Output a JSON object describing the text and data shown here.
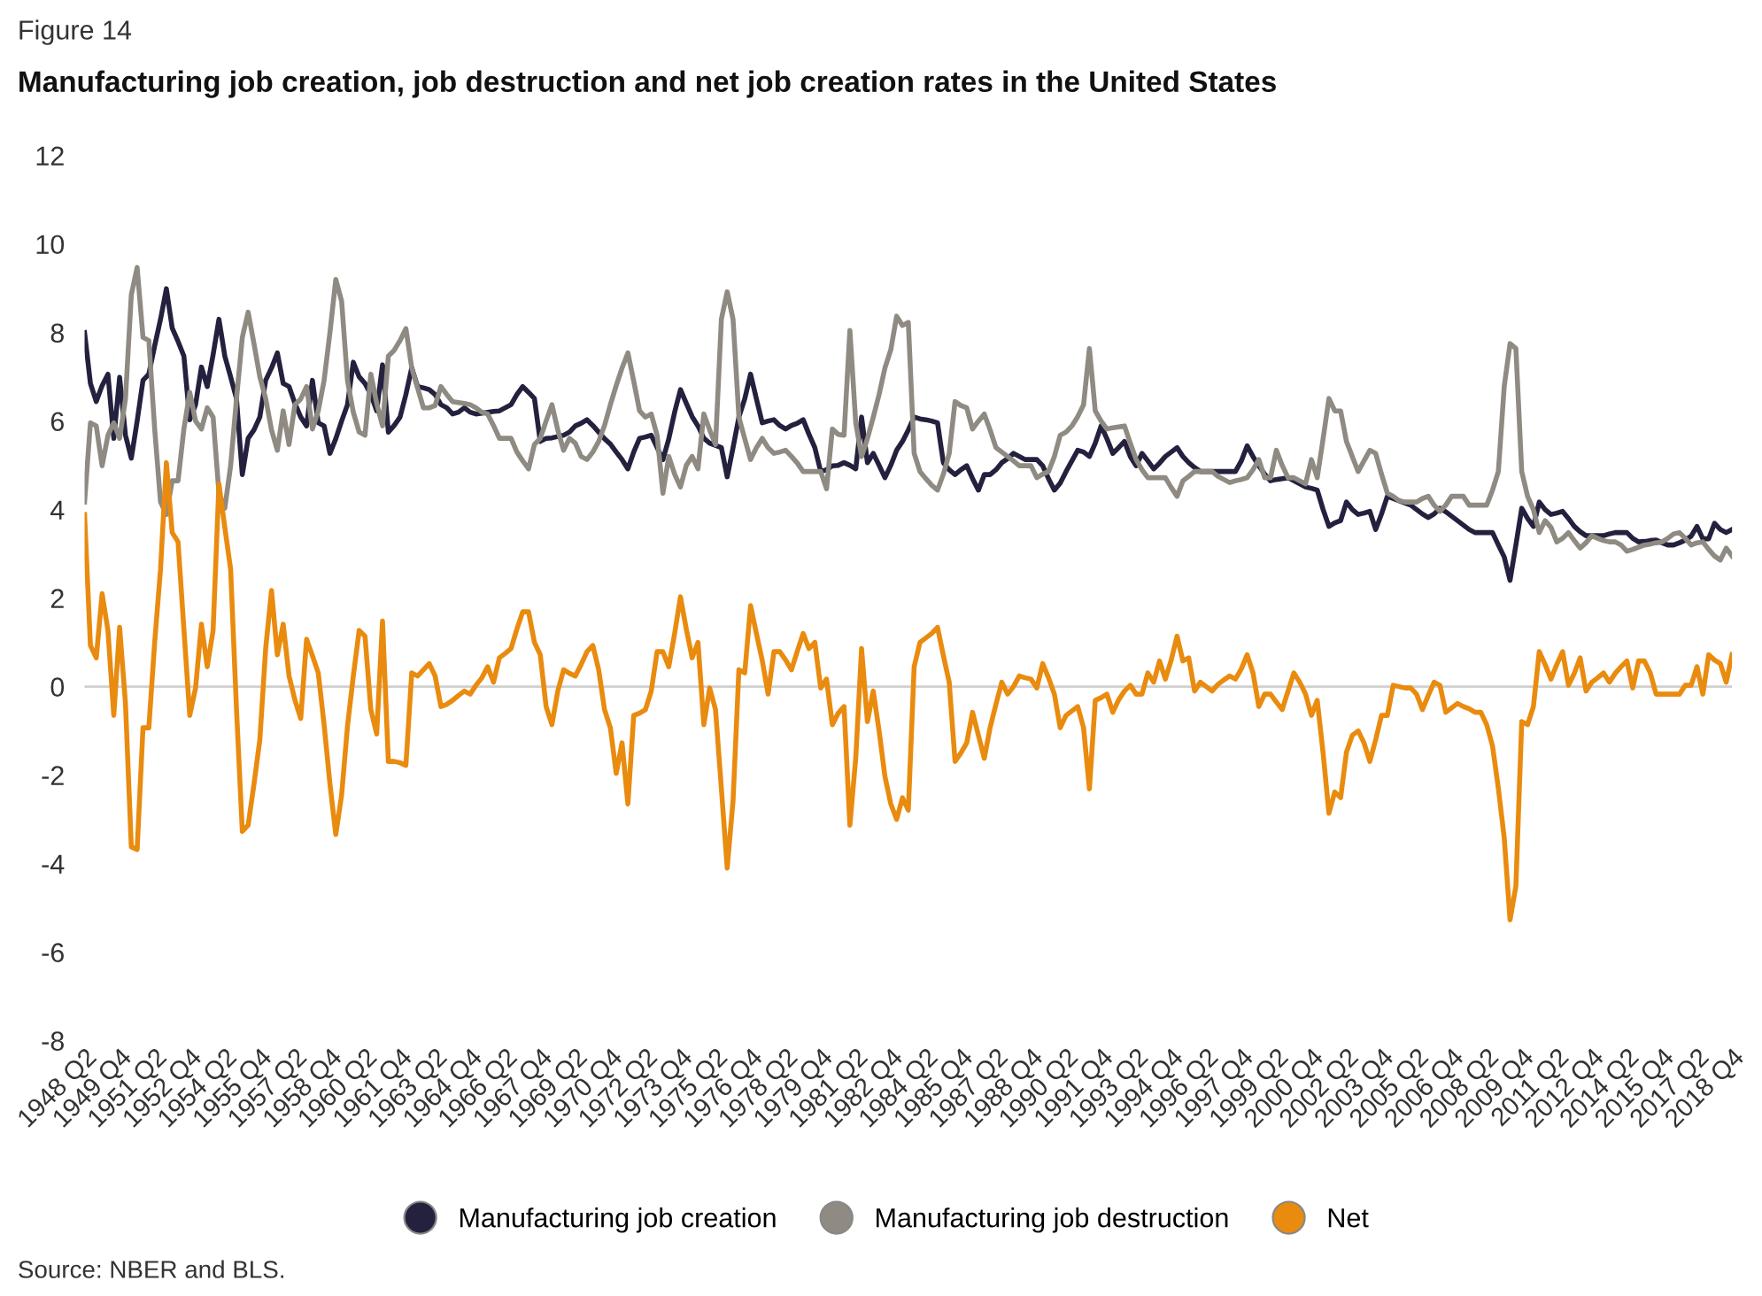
{
  "chart_data": {
    "type": "line",
    "title": "Manufacturing job creation, job destruction and net job creation rates in the United States",
    "annotations": [
      "Figure 14",
      "Source: NBER and BLS."
    ],
    "ylim": [
      -8,
      12
    ],
    "yticks": [
      -8,
      -6,
      -4,
      -2,
      0,
      2,
      4,
      6,
      8,
      10,
      12
    ],
    "categories": [
      "1948 Q2",
      null,
      null,
      null,
      null,
      null,
      "1949 Q4",
      null,
      null,
      null,
      null,
      null,
      "1951 Q2",
      null,
      null,
      null,
      null,
      null,
      "1952 Q4",
      null,
      null,
      null,
      null,
      null,
      "1954 Q2",
      null,
      null,
      null,
      null,
      null,
      "1955 Q4",
      null,
      null,
      null,
      null,
      null,
      "1957 Q2",
      null,
      null,
      null,
      null,
      null,
      "1958 Q4",
      null,
      null,
      null,
      null,
      null,
      "1960 Q2",
      null,
      null,
      null,
      null,
      null,
      "1961 Q4",
      null,
      null,
      null,
      null,
      null,
      "1963 Q2",
      null,
      null,
      null,
      null,
      null,
      "1964 Q4",
      null,
      null,
      null,
      null,
      null,
      "1966 Q2",
      null,
      null,
      null,
      null,
      null,
      "1967 Q4",
      null,
      null,
      null,
      null,
      null,
      "1969 Q2",
      null,
      null,
      null,
      null,
      null,
      "1970 Q4",
      null,
      null,
      null,
      null,
      null,
      "1972 Q2",
      null,
      null,
      null,
      null,
      null,
      "1973 Q4",
      null,
      null,
      null,
      null,
      null,
      "1975 Q2",
      null,
      null,
      null,
      null,
      null,
      "1976 Q4",
      null,
      null,
      null,
      null,
      null,
      "1978 Q2",
      null,
      null,
      null,
      null,
      null,
      "1979 Q4",
      null,
      null,
      null,
      null,
      null,
      "1981 Q2",
      null,
      null,
      null,
      null,
      null,
      "1982 Q4",
      null,
      null,
      null,
      null,
      null,
      "1984 Q2",
      null,
      null,
      null,
      null,
      null,
      "1985 Q4",
      null,
      null,
      null,
      null,
      null,
      "1987 Q2",
      null,
      null,
      null,
      null,
      null,
      "1988 Q4",
      null,
      null,
      null,
      null,
      null,
      "1990 Q2",
      null,
      null,
      null,
      null,
      null,
      "1991 Q4",
      null,
      null,
      null,
      null,
      null,
      "1993 Q2",
      null,
      null,
      null,
      null,
      null,
      "1994 Q4",
      null,
      null,
      null,
      null,
      null,
      "1996 Q2",
      null,
      null,
      null,
      null,
      null,
      "1997 Q4",
      null,
      null,
      null,
      null,
      null,
      "1999 Q2",
      null,
      null,
      null,
      null,
      null,
      "2000 Q4",
      null,
      null,
      null,
      null,
      null,
      "2002 Q2",
      null,
      null,
      null,
      null,
      null,
      "2003 Q4",
      null,
      null,
      null,
      null,
      null,
      "2005 Q2",
      null,
      null,
      null,
      null,
      null,
      "2006 Q4",
      null,
      null,
      null,
      null,
      null,
      "2008 Q2",
      null,
      null,
      null,
      null,
      null,
      "2009 Q4",
      null,
      null,
      null,
      null,
      null,
      "2011 Q2",
      null,
      null,
      null,
      null,
      null,
      "2012 Q4",
      null,
      null,
      null,
      null,
      null,
      "2014 Q2",
      null,
      null,
      null,
      null,
      null,
      "2015 Q4",
      null,
      null,
      null,
      null,
      null,
      "2017 Q2",
      null,
      null,
      null,
      null,
      null,
      "2018 Q4"
    ],
    "grid": false,
    "legend": "bottom",
    "marker": "none",
    "line_style": "solid",
    "ref_lines": [
      {
        "axis": "y",
        "value": 0,
        "color": "#d0d0d0"
      }
    ],
    "series": [
      {
        "name": "Manufacturing job creation",
        "color": "#24213f",
        "values": [
          8.0,
          6.85,
          6.44,
          6.8,
          7.06,
          5.61,
          6.99,
          5.68,
          5.16,
          6.0,
          6.92,
          7.06,
          7.7,
          8.3,
          8.99,
          8.1,
          7.8,
          7.47,
          6.03,
          6.37,
          7.22,
          6.78,
          7.5,
          8.3,
          7.47,
          7.0,
          6.51,
          4.79,
          5.61,
          5.8,
          6.09,
          6.92,
          7.2,
          7.54,
          6.85,
          6.78,
          6.4,
          6.09,
          5.89,
          6.92,
          5.96,
          5.89,
          5.27,
          5.6,
          6.0,
          6.37,
          7.33,
          7.0,
          6.85,
          6.6,
          6.23,
          7.27,
          5.75,
          5.9,
          6.09,
          6.6,
          7.2,
          6.78,
          6.75,
          6.71,
          6.6,
          6.37,
          6.3,
          6.16,
          6.2,
          6.3,
          6.2,
          6.16,
          6.18,
          6.2,
          6.22,
          6.23,
          6.3,
          6.37,
          6.6,
          6.78,
          6.65,
          6.51,
          5.54,
          5.61,
          5.62,
          5.65,
          5.68,
          5.75,
          5.89,
          5.95,
          6.03,
          5.9,
          5.75,
          5.6,
          5.48,
          5.3,
          5.13,
          4.92,
          5.3,
          5.61,
          5.64,
          5.68,
          5.4,
          5.13,
          5.6,
          6.2,
          6.71,
          6.4,
          6.1,
          5.89,
          5.61,
          5.5,
          5.45,
          5.4,
          4.74,
          5.4,
          6.09,
          6.5,
          7.06,
          6.5,
          5.96,
          6.0,
          6.03,
          5.9,
          5.82,
          5.9,
          5.95,
          6.03,
          5.7,
          5.4,
          4.86,
          4.9,
          4.99,
          5.0,
          5.06,
          5.0,
          4.92,
          6.09,
          5.06,
          5.27,
          5.0,
          4.72,
          5.0,
          5.34,
          5.54,
          5.8,
          6.09,
          6.05,
          6.03,
          6.0,
          5.96,
          5.06,
          4.9,
          4.79,
          4.9,
          4.99,
          4.7,
          4.44,
          4.79,
          4.79,
          4.9,
          5.06,
          5.15,
          5.27,
          5.2,
          5.13,
          5.13,
          5.13,
          4.99,
          4.7,
          4.44,
          4.6,
          4.86,
          5.1,
          5.34,
          5.3,
          5.2,
          5.5,
          5.89,
          5.6,
          5.27,
          5.4,
          5.54,
          5.2,
          4.99,
          5.27,
          5.1,
          4.92,
          5.05,
          5.2,
          5.3,
          5.4,
          5.2,
          5.06,
          4.95,
          4.86,
          4.86,
          4.86,
          4.86,
          4.86,
          4.86,
          4.86,
          5.1,
          5.44,
          5.2,
          4.99,
          4.8,
          4.65,
          4.68,
          4.7,
          4.72,
          4.65,
          4.58,
          4.51,
          4.48,
          4.44,
          4.0,
          3.62,
          3.7,
          3.75,
          4.17,
          4.0,
          3.89,
          3.92,
          3.96,
          3.55,
          3.9,
          4.3,
          4.25,
          4.2,
          4.15,
          4.1,
          4.0,
          3.9,
          3.82,
          3.9,
          4.03,
          3.95,
          3.85,
          3.75,
          3.65,
          3.55,
          3.48,
          3.48,
          3.48,
          3.48,
          3.2,
          2.93,
          2.4,
          3.2,
          4.03,
          3.8,
          3.62,
          4.17,
          4.0,
          3.89,
          3.92,
          3.96,
          3.8,
          3.62,
          3.5,
          3.41,
          3.41,
          3.41,
          3.41,
          3.45,
          3.48,
          3.48,
          3.48,
          3.35,
          3.27,
          3.28,
          3.3,
          3.31,
          3.25,
          3.2,
          3.2,
          3.25,
          3.31,
          3.4,
          3.62,
          3.34,
          3.34,
          3.69,
          3.55,
          3.48,
          3.55
        ]
      },
      {
        "name": "Manufacturing job destruction",
        "color": "#8f8a82",
        "values": [
          4.17,
          5.96,
          5.89,
          4.99,
          5.68,
          5.96,
          5.61,
          6.5,
          8.85,
          9.47,
          7.89,
          7.82,
          5.82,
          4.17,
          3.89,
          4.65,
          4.65,
          5.82,
          6.65,
          6.0,
          5.82,
          6.3,
          6.09,
          4.37,
          4.03,
          4.99,
          6.5,
          7.89,
          8.46,
          7.75,
          7.0,
          6.51,
          5.8,
          5.34,
          6.23,
          5.47,
          6.37,
          6.5,
          6.78,
          5.82,
          6.23,
          6.92,
          8.0,
          9.2,
          8.71,
          6.92,
          6.2,
          5.75,
          5.68,
          7.06,
          6.4,
          5.89,
          7.47,
          7.6,
          7.82,
          8.09,
          7.2,
          6.75,
          6.3,
          6.3,
          6.35,
          6.78,
          6.6,
          6.44,
          6.42,
          6.4,
          6.37,
          6.3,
          6.2,
          6.16,
          5.9,
          5.61,
          5.61,
          5.61,
          5.3,
          5.1,
          4.92,
          5.47,
          5.61,
          6.0,
          6.37,
          5.8,
          5.34,
          5.61,
          5.5,
          5.2,
          5.13,
          5.3,
          5.54,
          5.9,
          6.37,
          6.8,
          7.2,
          7.54,
          6.9,
          6.23,
          6.09,
          6.16,
          5.68,
          4.37,
          5.2,
          4.8,
          4.51,
          5.0,
          5.2,
          4.92,
          6.16,
          5.8,
          5.47,
          8.3,
          8.92,
          8.3,
          6.09,
          5.6,
          5.13,
          5.4,
          5.61,
          5.4,
          5.27,
          5.3,
          5.34,
          5.2,
          5.05,
          4.86,
          4.86,
          4.86,
          4.86,
          4.47,
          5.82,
          5.7,
          5.68,
          8.05,
          5.96,
          5.2,
          5.6,
          6.09,
          6.6,
          7.2,
          7.61,
          8.37,
          8.16,
          8.23,
          5.27,
          4.86,
          4.7,
          4.55,
          4.44,
          4.8,
          5.27,
          6.44,
          6.35,
          6.3,
          5.82,
          6.0,
          6.16,
          5.8,
          5.4,
          5.3,
          5.2,
          5.1,
          4.99,
          4.99,
          4.99,
          4.72,
          4.8,
          4.86,
          5.2,
          5.68,
          5.75,
          5.89,
          6.1,
          6.37,
          7.64,
          6.23,
          6.0,
          5.82,
          5.85,
          5.87,
          5.89,
          5.5,
          5.13,
          4.9,
          4.72,
          4.72,
          4.72,
          4.72,
          4.5,
          4.3,
          4.65,
          4.75,
          4.86,
          4.86,
          4.86,
          4.86,
          4.75,
          4.68,
          4.61,
          4.65,
          4.68,
          4.72,
          4.9,
          5.13,
          4.72,
          4.72,
          5.34,
          5.0,
          4.72,
          4.72,
          4.65,
          4.58,
          5.13,
          4.72,
          5.6,
          6.51,
          6.23,
          6.23,
          5.54,
          5.2,
          4.86,
          5.1,
          5.34,
          5.27,
          4.8,
          4.37,
          4.3,
          4.2,
          4.17,
          4.17,
          4.17,
          4.25,
          4.3,
          4.1,
          3.96,
          4.1,
          4.3,
          4.3,
          4.3,
          4.1,
          4.1,
          4.1,
          4.1,
          4.44,
          4.86,
          6.78,
          7.75,
          7.64,
          4.86,
          4.3,
          4.0,
          3.48,
          3.75,
          3.6,
          3.27,
          3.35,
          3.48,
          3.3,
          3.13,
          3.25,
          3.41,
          3.35,
          3.3,
          3.27,
          3.27,
          3.2,
          3.06,
          3.1,
          3.15,
          3.2,
          3.22,
          3.25,
          3.27,
          3.35,
          3.45,
          3.48,
          3.35,
          3.2,
          3.25,
          3.27,
          3.1,
          2.95,
          2.86,
          3.13,
          2.95
        ]
      },
      {
        "name": "Net",
        "color": "#e98b0f",
        "values": [
          3.89,
          0.93,
          0.65,
          2.1,
          1.27,
          -0.65,
          1.34,
          -0.38,
          -3.62,
          -3.68,
          -0.93,
          -0.93,
          1.0,
          2.65,
          5.06,
          3.48,
          3.27,
          1.3,
          -0.65,
          -0.03,
          1.41,
          0.45,
          1.27,
          4.58,
          3.6,
          2.65,
          -0.5,
          -3.27,
          -3.13,
          -2.2,
          -1.2,
          0.86,
          2.17,
          0.72,
          1.41,
          0.24,
          -0.3,
          -0.72,
          1.07,
          0.7,
          0.31,
          -0.86,
          -2.2,
          -3.34,
          -2.45,
          -0.9,
          0.24,
          1.27,
          1.14,
          -0.52,
          -1.07,
          1.48,
          -1.69,
          -1.69,
          -1.72,
          -1.78,
          0.31,
          0.24,
          0.38,
          0.52,
          0.24,
          -0.45,
          -0.4,
          -0.31,
          -0.2,
          -0.1,
          -0.17,
          0.03,
          0.2,
          0.45,
          0.1,
          0.65,
          0.75,
          0.86,
          1.3,
          1.69,
          1.69,
          1.0,
          0.72,
          -0.45,
          -0.86,
          -0.1,
          0.38,
          0.3,
          0.24,
          0.5,
          0.79,
          0.93,
          0.38,
          -0.52,
          -0.93,
          -1.96,
          -1.27,
          -2.65,
          -0.65,
          -0.6,
          -0.52,
          -0.1,
          0.79,
          0.79,
          0.45,
          1.2,
          2.03,
          1.3,
          0.65,
          1.0,
          -0.86,
          -0.03,
          -0.52,
          -2.3,
          -4.1,
          -2.58,
          0.38,
          0.31,
          1.83,
          1.2,
          0.59,
          -0.17,
          0.79,
          0.79,
          0.6,
          0.38,
          0.8,
          1.2,
          0.86,
          1.0,
          -0.03,
          0.17,
          -0.86,
          -0.6,
          -0.45,
          -3.13,
          -1.62,
          0.86,
          -0.79,
          -0.1,
          -1.0,
          -2.03,
          -2.65,
          -3.0,
          -2.51,
          -2.79,
          0.45,
          1.0,
          1.1,
          1.2,
          1.34,
          0.7,
          0.1,
          -1.69,
          -1.5,
          -1.27,
          -0.58,
          -1.1,
          -1.62,
          -0.93,
          -0.4,
          0.1,
          -0.17,
          0.0,
          0.24,
          0.2,
          0.17,
          -0.03,
          0.52,
          0.2,
          -0.17,
          -0.93,
          -0.65,
          -0.55,
          -0.45,
          -0.93,
          -2.31,
          -0.31,
          -0.25,
          -0.17,
          -0.58,
          -0.3,
          -0.1,
          0.03,
          -0.17,
          -0.17,
          0.31,
          0.1,
          0.58,
          0.17,
          0.6,
          1.14,
          0.58,
          0.65,
          -0.1,
          0.1,
          0.0,
          -0.1,
          0.05,
          0.15,
          0.24,
          0.17,
          0.4,
          0.72,
          0.31,
          -0.45,
          -0.17,
          -0.17,
          -0.35,
          -0.52,
          -0.1,
          0.31,
          0.1,
          -0.17,
          -0.65,
          -0.31,
          -1.5,
          -2.86,
          -2.38,
          -2.51,
          -1.48,
          -1.1,
          -1.0,
          -1.27,
          -1.69,
          -1.2,
          -0.65,
          -0.65,
          0.03,
          0.0,
          -0.03,
          -0.03,
          -0.17,
          -0.52,
          -0.2,
          0.1,
          0.03,
          -0.58,
          -0.48,
          -0.38,
          -0.45,
          -0.5,
          -0.58,
          -0.58,
          -0.86,
          -1.34,
          -2.3,
          -3.41,
          -5.27,
          -4.51,
          -0.79,
          -0.86,
          -0.45,
          0.79,
          0.5,
          0.17,
          0.5,
          0.79,
          0.03,
          0.3,
          0.65,
          -0.1,
          0.1,
          0.2,
          0.31,
          0.1,
          0.3,
          0.45,
          0.58,
          -0.03,
          0.58,
          0.58,
          0.31,
          -0.17,
          -0.17,
          -0.17,
          -0.17,
          -0.17,
          0.03,
          0.03,
          0.45,
          -0.17,
          0.72,
          0.6,
          0.52,
          0.1,
          0.72
        ]
      }
    ]
  }
}
